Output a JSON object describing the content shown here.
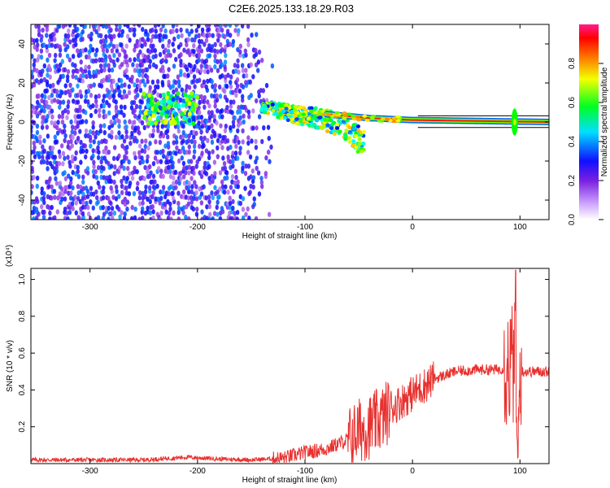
{
  "title": "C2E6.2025.133.18.29.R03",
  "colors": {
    "snr_line": "#e8312f",
    "frame": "#000000",
    "background": "#ffffff"
  },
  "chart_data": [
    {
      "type": "heatmap",
      "name": "spectrogram",
      "xlabel": "Height of straight line (km)",
      "ylabel": "Frequency (Hz)",
      "xlim": [
        -355,
        127
      ],
      "ylim": [
        -50,
        50
      ],
      "xticks": [
        -300,
        -200,
        -100,
        0,
        100
      ],
      "yticks": [
        -40,
        -20,
        0,
        20,
        40
      ],
      "colorbar": {
        "label": "Normalized spectral amplitude",
        "range": [
          0,
          1
        ],
        "ticks": [
          "0.0",
          "0.2",
          "0.4",
          "0.6",
          "0.8"
        ],
        "colormap": [
          "#ffffff",
          "#8a2be2",
          "#0000ff",
          "#00ffff",
          "#00ff00",
          "#ffff00",
          "#ff8000",
          "#ff0000",
          "#ff1493"
        ]
      },
      "features": [
        {
          "kind": "noise",
          "x_range": [
            -355,
            -130
          ],
          "y_range": [
            -50,
            50
          ],
          "level": 0.25
        },
        {
          "kind": "blob",
          "x_range": [
            -250,
            -200
          ],
          "y_center": 7,
          "y_halfwidth": 8,
          "level": 0.45
        },
        {
          "kind": "descending_trace",
          "points": [
            [
              -140,
              8
            ],
            [
              -110,
              4
            ],
            [
              -80,
              1
            ],
            [
              -60,
              -3
            ],
            [
              -45,
              -12
            ]
          ],
          "level": 0.5
        },
        {
          "kind": "trace",
          "points": [
            [
              -80,
              4
            ],
            [
              -40,
              2
            ],
            [
              0,
              1
            ],
            [
              127,
              0
            ]
          ],
          "level": 0.85
        },
        {
          "kind": "spike",
          "x": 95,
          "y_halfwidth": 7,
          "level": 0.5
        }
      ]
    },
    {
      "type": "line",
      "name": "snr",
      "xlabel": "Height of straight line (km)",
      "ylabel": "SNR (10 * v/v)",
      "y_multiplier_label": "(x10⁴)",
      "xlim": [
        -355,
        127
      ],
      "ylim": [
        0,
        1.06
      ],
      "xticks": [
        -300,
        -200,
        -100,
        0,
        100
      ],
      "yticks": [
        "0.2",
        "0.4",
        "0.6",
        "0.8",
        "1.0"
      ],
      "series": [
        {
          "color": "#e8312f",
          "x": [
            -355,
            -300,
            -250,
            -210,
            -180,
            -150,
            -120,
            -100,
            -80,
            -60,
            -50,
            -40,
            -30,
            -20,
            -10,
            0,
            10,
            20,
            30,
            40,
            50,
            60,
            70,
            80,
            85,
            90,
            95,
            98,
            100,
            105,
            110,
            115,
            120,
            127
          ],
          "y": [
            0.02,
            0.02,
            0.02,
            0.035,
            0.025,
            0.02,
            0.03,
            0.06,
            0.08,
            0.13,
            0.18,
            0.2,
            0.24,
            0.3,
            0.34,
            0.38,
            0.42,
            0.46,
            0.48,
            0.5,
            0.505,
            0.51,
            0.51,
            0.51,
            0.52,
            0.53,
            0.55,
            0.3,
            0.5,
            0.5,
            0.5,
            0.5,
            0.5,
            0.5
          ],
          "noise_envelope": [
            {
              "x_range": [
                -355,
                -130
              ],
              "amplitude": 0.012
            },
            {
              "x_range": [
                -130,
                -60
              ],
              "amplitude": 0.04
            },
            {
              "x_range": [
                -60,
                -20
              ],
              "amplitude": 0.18
            },
            {
              "x_range": [
                -20,
                20
              ],
              "amplitude": 0.1
            },
            {
              "x_range": [
                20,
                85
              ],
              "amplitude": 0.03
            },
            {
              "x_range": [
                85,
                102
              ],
              "amplitude": 0.35
            },
            {
              "x_range": [
                102,
                127
              ],
              "amplitude": 0.03
            }
          ]
        }
      ]
    }
  ]
}
